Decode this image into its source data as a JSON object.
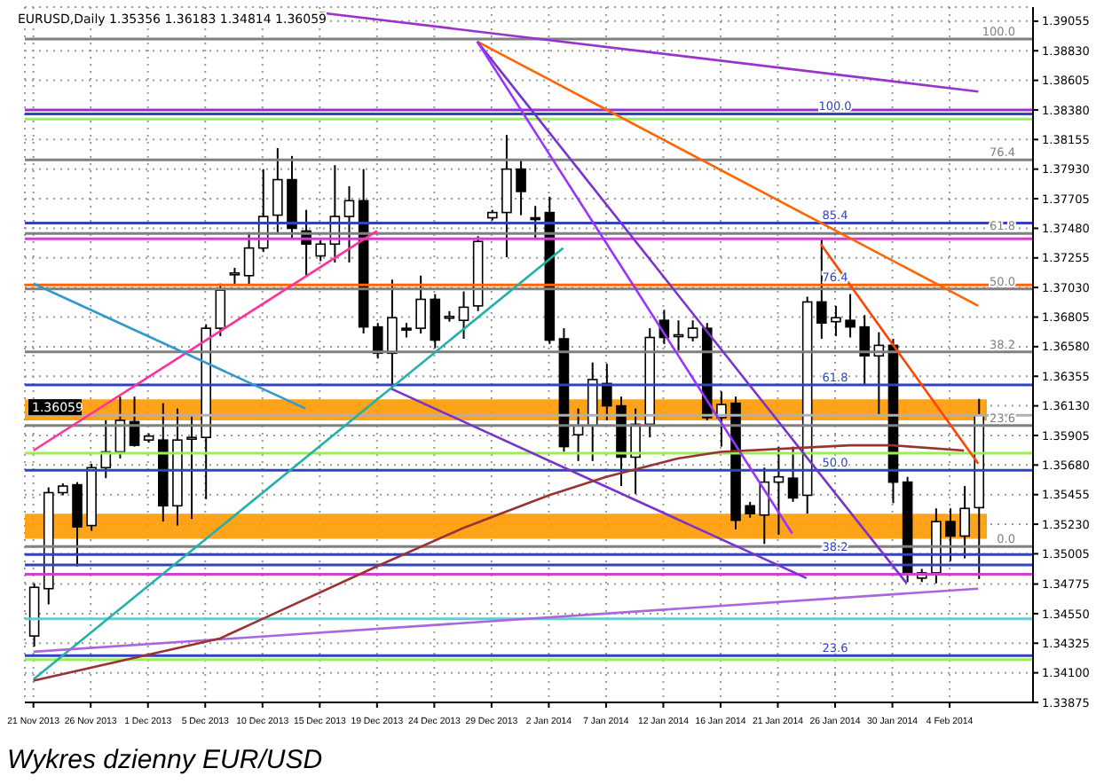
{
  "chart_data": {
    "type": "candlestick",
    "title": "Wykres dzienny EUR/USD",
    "subtitle": "EURUSD,Daily  1.35356 1.36183 1.34814 1.36059",
    "categories": [
      "21 Nov 2013",
      null,
      null,
      null,
      "26 Nov 2013",
      null,
      null,
      null,
      "1 Dec 2013",
      null,
      null,
      null,
      "5 Dec 2013",
      null,
      null,
      null,
      "10 Dec 2013",
      null,
      null,
      null,
      "15 Dec 2013",
      null,
      null,
      null,
      "19 Dec 2013",
      null,
      null,
      null,
      "24 Dec 2013",
      null,
      null,
      null,
      "29 Dec 2013",
      null,
      null,
      null,
      "2 Jan 2014",
      null,
      null,
      null,
      "7 Jan 2014",
      null,
      null,
      null,
      "12 Jan 2014",
      null,
      null,
      null,
      "16 Jan 2014",
      null,
      null,
      null,
      "21 Jan 2014",
      null,
      null,
      null,
      "26 Jan 2014",
      null,
      null,
      null,
      "30 Jan 2014",
      null,
      null,
      null,
      "4 Feb 2014",
      null,
      null
    ],
    "ohlc": [
      [
        1.3438,
        1.3478,
        1.343,
        1.3475
      ],
      [
        1.3474,
        1.3551,
        1.3462,
        1.3547
      ],
      [
        1.3547,
        1.3554,
        1.3545,
        1.3552
      ],
      [
        1.3553,
        1.3555,
        1.3491,
        1.3521
      ],
      [
        1.3522,
        1.3569,
        1.3518,
        1.3566
      ],
      [
        1.3566,
        1.3602,
        1.3558,
        1.3578
      ],
      [
        1.3578,
        1.362,
        1.3573,
        1.3602
      ],
      [
        1.3601,
        1.362,
        1.3582,
        1.3583
      ],
      [
        1.3587,
        1.3592,
        1.3585,
        1.359
      ],
      [
        1.3587,
        1.3615,
        1.3525,
        1.3537
      ],
      [
        1.3537,
        1.3611,
        1.3522,
        1.3587
      ],
      [
        1.3588,
        1.3605,
        1.3527,
        1.3589
      ],
      [
        1.3589,
        1.3675,
        1.3542,
        1.3672
      ],
      [
        1.3672,
        1.3706,
        1.3666,
        1.3701
      ],
      [
        1.3713,
        1.3718,
        1.3705,
        1.3714
      ],
      [
        1.3712,
        1.3745,
        1.3705,
        1.3733
      ],
      [
        1.3733,
        1.3793,
        1.373,
        1.3757
      ],
      [
        1.3758,
        1.3809,
        1.3745,
        1.3785
      ],
      [
        1.3785,
        1.3803,
        1.374,
        1.3748
      ],
      [
        1.3746,
        1.3762,
        1.3712,
        1.3736
      ],
      [
        1.3727,
        1.3739,
        1.3723,
        1.3736
      ],
      [
        1.3736,
        1.3796,
        1.3722,
        1.3757
      ],
      [
        1.3757,
        1.378,
        1.3722,
        1.3769
      ],
      [
        1.3769,
        1.3793,
        1.3668,
        1.3673
      ],
      [
        1.3673,
        1.3676,
        1.3649,
        1.3653
      ],
      [
        1.3653,
        1.3709,
        1.3626,
        1.368
      ],
      [
        1.3672,
        1.3676,
        1.3665,
        1.3671
      ],
      [
        1.3672,
        1.3712,
        1.3668,
        1.3694
      ],
      [
        1.3694,
        1.3698,
        1.3657,
        1.3663
      ],
      [
        1.368,
        1.3685,
        1.3677,
        1.3681
      ],
      [
        1.3678,
        1.37,
        1.3664,
        1.3688
      ],
      [
        1.3689,
        1.3742,
        1.3685,
        1.3738
      ],
      [
        1.3756,
        1.3762,
        1.3754,
        1.376
      ],
      [
        1.376,
        1.3819,
        1.3726,
        1.3793
      ],
      [
        1.3793,
        1.38,
        1.3758,
        1.3776
      ],
      [
        1.3756,
        1.3765,
        1.374,
        1.3755
      ],
      [
        1.376,
        1.3772,
        1.366,
        1.3663
      ],
      [
        1.3664,
        1.3672,
        1.3578,
        1.3582
      ],
      [
        1.3591,
        1.3611,
        1.3571,
        1.3598
      ],
      [
        1.3598,
        1.3646,
        1.3571,
        1.3633
      ],
      [
        1.363,
        1.3645,
        1.3602,
        1.3613
      ],
      [
        1.3613,
        1.362,
        1.3552,
        1.3574
      ],
      [
        1.3574,
        1.3611,
        1.3546,
        1.3599
      ],
      [
        1.3599,
        1.3672,
        1.3589,
        1.3665
      ],
      [
        1.3678,
        1.3686,
        1.366,
        1.3665
      ],
      [
        1.3666,
        1.3678,
        1.3655,
        1.3667
      ],
      [
        1.3665,
        1.3678,
        1.3662,
        1.3672
      ],
      [
        1.3672,
        1.3676,
        1.3602,
        1.3604
      ],
      [
        1.3604,
        1.3624,
        1.3582,
        1.3614
      ],
      [
        1.3615,
        1.362,
        1.3519,
        1.3526
      ],
      [
        1.3537,
        1.354,
        1.3528,
        1.3531
      ],
      [
        1.353,
        1.3566,
        1.3508,
        1.3555
      ],
      [
        1.3555,
        1.3582,
        1.3515,
        1.3559
      ],
      [
        1.3558,
        1.3582,
        1.354,
        1.3543
      ],
      [
        1.3545,
        1.3696,
        1.3531,
        1.3692
      ],
      [
        1.3692,
        1.374,
        1.3664,
        1.3676
      ],
      [
        1.3677,
        1.3689,
        1.3666,
        1.368
      ],
      [
        1.3678,
        1.3698,
        1.3665,
        1.3673
      ],
      [
        1.3673,
        1.3682,
        1.3629,
        1.3651
      ],
      [
        1.3651,
        1.3669,
        1.3606,
        1.3659
      ],
      [
        1.3659,
        1.3664,
        1.3539,
        1.3555
      ],
      [
        1.3555,
        1.3559,
        1.3479,
        1.3486
      ],
      [
        1.3482,
        1.3489,
        1.3479,
        1.3486
      ],
      [
        1.3486,
        1.3535,
        1.3478,
        1.3525
      ],
      [
        1.3525,
        1.3535,
        1.3495,
        1.3514
      ],
      [
        1.3514,
        1.3552,
        1.3497,
        1.3535
      ],
      [
        1.35356,
        1.36183,
        1.34814,
        1.36059
      ]
    ],
    "colors": [
      "#ffffff",
      "#ffffff",
      "#ffffff",
      "#000000",
      "#ffffff",
      "#ffffff",
      "#ffffff",
      "#000000",
      "#ffffff",
      "#000000",
      "#ffffff",
      "#ffffff",
      "#ffffff",
      "#ffffff",
      "#ffffff",
      "#ffffff",
      "#ffffff",
      "#ffffff",
      "#000000",
      "#000000",
      "#ffffff",
      "#ffffff",
      "#ffffff",
      "#000000",
      "#000000",
      "#ffffff",
      "#000000",
      "#ffffff",
      "#000000",
      "#ffffff",
      "#ffffff",
      "#ffffff",
      "#ffffff",
      "#ffffff",
      "#000000",
      "#000000",
      "#000000",
      "#000000",
      "#ffffff",
      "#ffffff",
      "#000000",
      "#000000",
      "#ffffff",
      "#ffffff",
      "#000000",
      "#ffffff",
      "#ffffff",
      "#000000",
      "#ffffff",
      "#000000",
      "#000000",
      "#ffffff",
      "#ffffff",
      "#000000",
      "#ffffff",
      "#000000",
      "#ffffff",
      "#000000",
      "#000000",
      "#ffffff",
      "#000000",
      "#000000",
      "#ffffff",
      "#ffffff",
      "#000000",
      "#ffffff",
      "#ffffff"
    ],
    "annotations": [
      {
        "text": "100.0",
        "y": 1.3892
      },
      {
        "text": "76.4",
        "y": 1.38
      },
      {
        "text": "61.8",
        "y": 1.3744
      },
      {
        "text": "50.0",
        "y": 1.3702
      },
      {
        "text": "38.2",
        "y": 1.3654
      },
      {
        "text": "23.6",
        "y": 1.3598
      },
      {
        "text": "0.0",
        "y": 1.3506
      },
      {
        "text": "100.0",
        "x": "26 Jan 2014",
        "y": 1.3835
      },
      {
        "text": "85.4",
        "x": "26 Jan 2014",
        "y": 1.3752
      },
      {
        "text": "76.4",
        "x": "26 Jan 2014",
        "y": 1.3705
      },
      {
        "text": "61.8",
        "x": "26 Jan 2014",
        "y": 1.3629
      },
      {
        "text": "50.0",
        "x": "26 Jan 2014",
        "y": 1.3564
      },
      {
        "text": "38.2",
        "x": "26 Jan 2014",
        "y": 1.35
      },
      {
        "text": "23.6",
        "x": "26 Jan 2014",
        "y": 1.3423
      }
    ],
    "series": [
      {
        "type": "line",
        "color": "#9933cc",
        "values": [
          null,
          null,
          null,
          null,
          null,
          null,
          null,
          null,
          null,
          null,
          null,
          null,
          null,
          null,
          null,
          null,
          null,
          null,
          null,
          null,
          1.3912,
          null,
          null,
          null,
          null,
          null,
          null,
          null,
          null,
          null,
          null,
          null,
          null,
          null,
          null,
          null,
          null,
          null,
          null,
          null,
          null,
          null,
          null,
          null,
          null,
          null,
          null,
          null,
          null,
          null,
          null,
          null,
          null,
          null,
          null,
          null,
          null,
          null,
          null,
          null,
          null,
          null,
          null,
          null,
          null,
          null,
          1.3852
        ]
      },
      {
        "type": "line",
        "color": "#ff6600",
        "values": [
          null,
          null,
          null,
          null,
          null,
          null,
          null,
          null,
          null,
          null,
          null,
          null,
          null,
          null,
          null,
          null,
          null,
          null,
          null,
          null,
          null,
          null,
          null,
          null,
          null,
          null,
          null,
          null,
          null,
          null,
          null,
          1.389,
          null,
          null,
          null,
          null,
          null,
          null,
          null,
          null,
          null,
          null,
          null,
          null,
          null,
          null,
          null,
          null,
          null,
          null,
          null,
          null,
          null,
          null,
          null,
          null,
          null,
          null,
          null,
          null,
          null,
          null,
          null,
          null,
          null,
          null,
          1.3689
        ]
      },
      {
        "type": "line",
        "color": "#ff4400",
        "values": [
          null,
          null,
          null,
          null,
          null,
          null,
          null,
          null,
          null,
          null,
          null,
          null,
          null,
          null,
          null,
          null,
          null,
          null,
          null,
          null,
          null,
          null,
          null,
          null,
          null,
          null,
          null,
          null,
          null,
          null,
          null,
          null,
          null,
          null,
          null,
          null,
          null,
          null,
          null,
          null,
          null,
          null,
          null,
          null,
          null,
          null,
          null,
          null,
          null,
          null,
          null,
          null,
          null,
          null,
          null,
          1.3736,
          null,
          null,
          null,
          null,
          null,
          null,
          null,
          null,
          null,
          null,
          1.3569
        ]
      },
      {
        "type": "line",
        "color": "#7733cc",
        "values": [
          null,
          null,
          null,
          null,
          null,
          null,
          null,
          null,
          null,
          null,
          null,
          null,
          null,
          null,
          null,
          null,
          null,
          null,
          null,
          null,
          null,
          null,
          null,
          null,
          null,
          null,
          null,
          null,
          null,
          null,
          null,
          1.389,
          null,
          null,
          null,
          null,
          null,
          null,
          null,
          null,
          null,
          null,
          null,
          null,
          null,
          null,
          null,
          null,
          null,
          null,
          null,
          null,
          null,
          null,
          null,
          null,
          null,
          null,
          null,
          null,
          null,
          1.3478,
          null,
          null,
          null,
          null,
          null
        ]
      },
      {
        "type": "line",
        "color": "#9933ff",
        "values": [
          null,
          null,
          null,
          null,
          null,
          null,
          null,
          null,
          null,
          null,
          null,
          null,
          null,
          null,
          null,
          null,
          null,
          null,
          null,
          null,
          null,
          null,
          null,
          null,
          null,
          null,
          null,
          null,
          null,
          null,
          null,
          1.389,
          null,
          null,
          null,
          null,
          null,
          null,
          null,
          null,
          null,
          null,
          null,
          null,
          null,
          null,
          null,
          null,
          null,
          null,
          null,
          null,
          null,
          1.3516,
          null,
          null,
          null,
          null,
          null,
          null,
          null,
          null,
          null,
          null,
          null,
          null,
          null
        ]
      },
      {
        "type": "line",
        "color": "#7733cc",
        "values": [
          null,
          null,
          null,
          null,
          null,
          null,
          null,
          null,
          null,
          null,
          null,
          null,
          null,
          null,
          null,
          null,
          null,
          null,
          null,
          null,
          null,
          null,
          null,
          null,
          null,
          1.3626,
          null,
          null,
          null,
          null,
          null,
          null,
          null,
          null,
          null,
          null,
          null,
          null,
          null,
          null,
          null,
          null,
          null,
          null,
          null,
          null,
          null,
          null,
          null,
          null,
          null,
          null,
          null,
          null,
          1.3482,
          null,
          null,
          null,
          null,
          null,
          null,
          null,
          null,
          null,
          null,
          null,
          null
        ]
      },
      {
        "type": "line",
        "color": "#ff3399",
        "values": [
          1.3579,
          null,
          null,
          null,
          null,
          null,
          null,
          null,
          null,
          null,
          null,
          null,
          null,
          null,
          null,
          null,
          null,
          null,
          null,
          null,
          null,
          null,
          null,
          null,
          1.3746,
          null,
          null,
          null,
          null,
          null,
          null,
          null,
          null,
          null,
          null,
          null,
          null,
          null,
          null,
          null,
          null,
          null,
          null,
          null,
          null,
          null,
          null,
          null,
          null,
          null,
          null,
          null,
          null,
          null,
          null,
          null,
          null,
          null,
          null,
          null,
          null,
          null,
          null,
          null,
          null,
          null,
          null
        ]
      },
      {
        "type": "line",
        "color": "#20b2aa",
        "values": [
          1.3405,
          null,
          null,
          null,
          null,
          null,
          null,
          null,
          null,
          null,
          null,
          null,
          null,
          null,
          null,
          null,
          null,
          null,
          null,
          null,
          null,
          null,
          null,
          null,
          null,
          null,
          null,
          null,
          null,
          null,
          null,
          null,
          null,
          null,
          null,
          null,
          null,
          1.3733,
          null,
          null,
          null,
          null,
          null,
          null,
          null,
          null,
          null,
          null,
          null,
          null,
          null,
          null,
          null,
          null,
          null,
          null,
          null,
          null,
          null,
          null,
          null,
          null,
          null,
          null,
          null,
          null,
          null
        ]
      },
      {
        "type": "line",
        "color": "#3399cc",
        "values": [
          1.3706,
          null,
          null,
          null,
          null,
          null,
          null,
          null,
          null,
          null,
          null,
          null,
          null,
          null,
          null,
          null,
          null,
          null,
          null,
          1.3611,
          null,
          null,
          null,
          null,
          null,
          null,
          null,
          null,
          null,
          null,
          null,
          null,
          null,
          null,
          null,
          null,
          null,
          null,
          null,
          null,
          null,
          null,
          null,
          null,
          null,
          null,
          null,
          null,
          null,
          null,
          null,
          null,
          null,
          null,
          null,
          null,
          null,
          null,
          null,
          null,
          null,
          null,
          null,
          null,
          null,
          null,
          null
        ]
      },
      {
        "type": "line",
        "color": "#aa66dd",
        "values": [
          1.3426,
          null,
          null,
          null,
          null,
          null,
          null,
          null,
          null,
          null,
          null,
          null,
          null,
          null,
          null,
          null,
          null,
          null,
          null,
          null,
          null,
          null,
          null,
          null,
          null,
          null,
          null,
          null,
          null,
          null,
          null,
          null,
          null,
          null,
          null,
          null,
          null,
          null,
          null,
          null,
          null,
          null,
          null,
          null,
          null,
          null,
          null,
          null,
          null,
          null,
          null,
          null,
          null,
          null,
          null,
          null,
          null,
          null,
          null,
          null,
          null,
          null,
          null,
          null,
          null,
          null,
          1.3474
        ]
      },
      {
        "type": "line",
        "color": "#993333",
        "values": [
          1.3404,
          null,
          null,
          null,
          null,
          null,
          null,
          null,
          null,
          null,
          null,
          null,
          null,
          1.3436,
          null,
          null,
          1.3451,
          null,
          null,
          null,
          null,
          null,
          null,
          null,
          1.3491,
          null,
          null,
          null,
          null,
          null,
          1.352,
          null,
          null,
          null,
          null,
          null,
          1.3545,
          null,
          null,
          null,
          1.3559,
          null,
          null,
          null,
          null,
          1.3573,
          null,
          null,
          1.3578,
          null,
          null,
          null,
          null,
          null,
          null,
          null,
          null,
          1.3583,
          null,
          null,
          1.3583,
          null,
          null,
          null,
          null,
          1.3579,
          null
        ]
      }
    ],
    "bands": [
      {
        "axis": "y",
        "from": 1.3602,
        "to": 1.3618,
        "color": "#ff9900"
      },
      {
        "axis": "y",
        "from": 1.3512,
        "to": 1.3531,
        "color": "#ff9900"
      }
    ],
    "ref_lines": [
      {
        "axis": "y",
        "value": 1.3892,
        "color": "#808080"
      },
      {
        "axis": "y",
        "value": 1.38,
        "color": "#808080"
      },
      {
        "axis": "y",
        "value": 1.3744,
        "color": "#808080"
      },
      {
        "axis": "y",
        "value": 1.3702,
        "color": "#808080"
      },
      {
        "axis": "y",
        "value": 1.3654,
        "color": "#808080"
      },
      {
        "axis": "y",
        "value": 1.3598,
        "color": "#808080"
      },
      {
        "axis": "y",
        "value": 1.3506,
        "color": "#808080"
      },
      {
        "axis": "y",
        "value": 1.3838,
        "color": "#9933cc"
      },
      {
        "axis": "y",
        "value": 1.3835,
        "color": "#3344bb"
      },
      {
        "axis": "y",
        "value": 1.3831,
        "color": "#99ee55"
      },
      {
        "axis": "y",
        "value": 1.3752,
        "color": "#3344bb"
      },
      {
        "axis": "y",
        "value": 1.374,
        "color": "#cc44cc"
      },
      {
        "axis": "y",
        "value": 1.3705,
        "color": "#ff6600"
      },
      {
        "axis": "y",
        "value": 1.3629,
        "color": "#3344bb"
      },
      {
        "axis": "y",
        "value": 1.3577,
        "color": "#99ee55"
      },
      {
        "axis": "y",
        "value": 1.3564,
        "color": "#3344bb"
      },
      {
        "axis": "y",
        "value": 1.35,
        "color": "#3344bb"
      },
      {
        "axis": "y",
        "value": 1.3492,
        "color": "#3344bb"
      },
      {
        "axis": "y",
        "value": 1.3485,
        "color": "#cc44cc"
      },
      {
        "axis": "y",
        "value": 1.3451,
        "color": "#66cccc"
      },
      {
        "axis": "y",
        "value": 1.3423,
        "color": "#3344bb"
      },
      {
        "axis": "y",
        "value": 1.342,
        "color": "#99ee55"
      },
      {
        "axis": "y",
        "value": 1.36059,
        "label": "1.36059",
        "color": "#b0b0b0"
      }
    ],
    "ylim": [
      1.33875,
      1.39162
    ],
    "yticks": [
      {
        "value": 1.39055,
        "label": "1.39055"
      },
      {
        "value": 1.3883,
        "label": "1.38830"
      },
      {
        "value": 1.38605,
        "label": "1.38605"
      },
      {
        "value": 1.3838,
        "label": "1.38380"
      },
      {
        "value": 1.38155,
        "label": "1.38155"
      },
      {
        "value": 1.3793,
        "label": "1.37930"
      },
      {
        "value": 1.37705,
        "label": "1.37705"
      },
      {
        "value": 1.3748,
        "label": "1.37480"
      },
      {
        "value": 1.37255,
        "label": "1.37255"
      },
      {
        "value": 1.3703,
        "label": "1.37030"
      },
      {
        "value": 1.36805,
        "label": "1.36805"
      },
      {
        "value": 1.3658,
        "label": "1.36580"
      },
      {
        "value": 1.36355,
        "label": "1.36355"
      },
      {
        "value": 1.3613,
        "label": "1.36130"
      },
      {
        "value": 1.35905,
        "label": "1.35905"
      },
      {
        "value": 1.3568,
        "label": "1.35680"
      },
      {
        "value": 1.35455,
        "label": "1.35455"
      },
      {
        "value": 1.3523,
        "label": "1.35230"
      },
      {
        "value": 1.35005,
        "label": "1.35005"
      },
      {
        "value": 1.34775,
        "label": "1.34775"
      },
      {
        "value": 1.3455,
        "label": "1.34550"
      },
      {
        "value": 1.34325,
        "label": "1.34325"
      },
      {
        "value": 1.341,
        "label": "1.34100"
      },
      {
        "value": 1.33875,
        "label": "1.33875"
      }
    ],
    "grid": true
  }
}
